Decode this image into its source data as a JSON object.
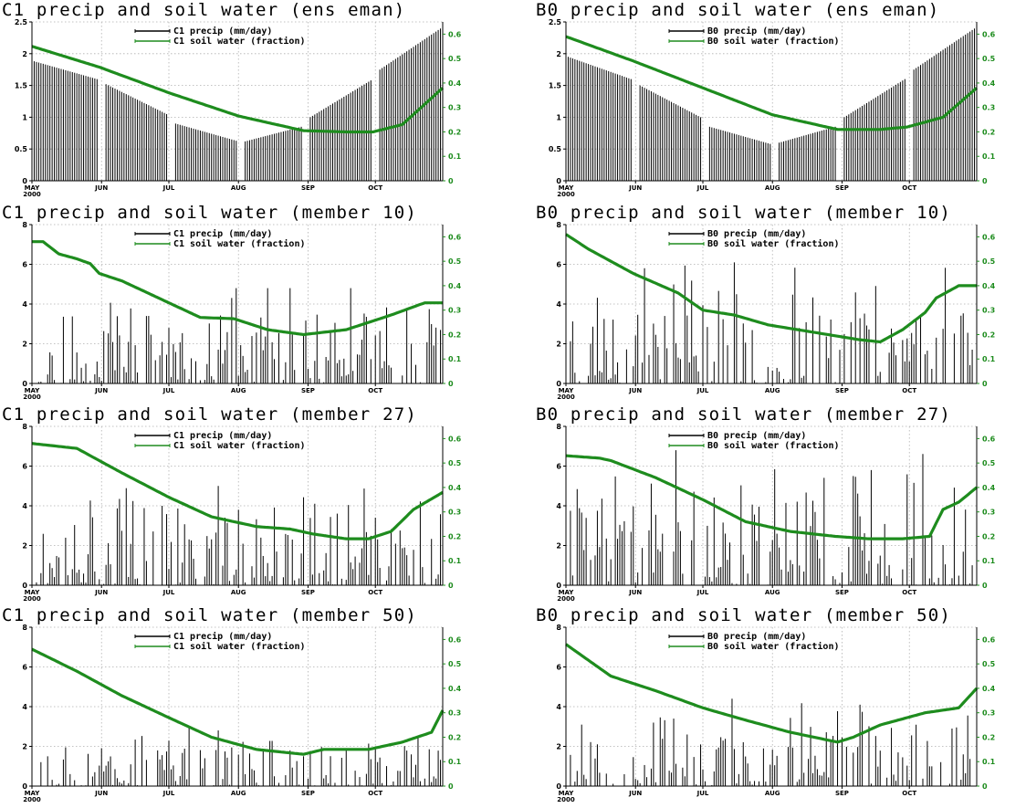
{
  "colors": {
    "precip": "#000000",
    "soil": "#1e8c1e",
    "grid": "#b0b0b0"
  },
  "chart_data": [
    {
      "type": "bar",
      "title": "C1  precip and soil water (ens eman)",
      "x_ticks": [
        "MAY",
        "JUN",
        "JUL",
        "AUG",
        "SEP",
        "OCT"
      ],
      "x_year": "2000",
      "ylim_left": [
        0,
        2.5
      ],
      "ticks_left": [
        0,
        0.5,
        1,
        1.5,
        2,
        2.5
      ],
      "ylim_right": [
        0,
        0.65
      ],
      "ticks_right": [
        0,
        0.1,
        0.2,
        0.3,
        0.4,
        0.5,
        0.6
      ],
      "grid": true,
      "legend_placement": "top-center",
      "series": [
        {
          "name": "C1 precip (mm/day)",
          "axis": "left",
          "type": "bar",
          "gaps": [
            [
              30,
              32
            ],
            [
              61,
              63
            ],
            [
              92,
              94
            ],
            [
              121,
              123
            ],
            [
              152,
              154
            ]
          ],
          "segments": [
            {
              "start": 1,
              "end": 29,
              "values": [
                1.88,
                1.6
              ]
            },
            {
              "start": 33,
              "end": 60,
              "values": [
                1.52,
                1.05
              ]
            },
            {
              "start": 64,
              "end": 91,
              "values": [
                0.9,
                0.63
              ]
            },
            {
              "start": 95,
              "end": 120,
              "values": [
                0.62,
                0.85
              ]
            },
            {
              "start": 124,
              "end": 151,
              "values": [
                1.0,
                1.58
              ]
            },
            {
              "start": 155,
              "end": 183,
              "values": [
                1.75,
                2.42
              ]
            }
          ]
        },
        {
          "name": "C1 soil water (fraction)",
          "axis": "right",
          "type": "line",
          "points": [
            [
              0,
              0.55
            ],
            [
              30,
              0.465
            ],
            [
              61,
              0.36
            ],
            [
              92,
              0.265
            ],
            [
              121,
              0.205
            ],
            [
              140,
              0.2
            ],
            [
              152,
              0.2
            ],
            [
              165,
              0.23
            ],
            [
              183,
              0.38
            ]
          ]
        }
      ]
    },
    {
      "type": "bar",
      "title": "B0  precip and soil water (ens eman)",
      "x_ticks": [
        "MAY",
        "JUN",
        "JUL",
        "AUG",
        "SEP",
        "OCT"
      ],
      "x_year": "2000",
      "ylim_left": [
        0,
        2.5
      ],
      "ticks_left": [
        0,
        0.5,
        1,
        1.5,
        2,
        2.5
      ],
      "ylim_right": [
        0,
        0.65
      ],
      "ticks_right": [
        0,
        0.1,
        0.2,
        0.3,
        0.4,
        0.5,
        0.6
      ],
      "grid": true,
      "legend_placement": "top-center",
      "series": [
        {
          "name": "B0 precip (mm/day)",
          "axis": "left",
          "type": "bar",
          "segments": [
            {
              "start": 1,
              "end": 29,
              "values": [
                1.95,
                1.6
              ]
            },
            {
              "start": 33,
              "end": 60,
              "values": [
                1.5,
                1.0
              ]
            },
            {
              "start": 64,
              "end": 91,
              "values": [
                0.85,
                0.58
              ]
            },
            {
              "start": 95,
              "end": 120,
              "values": [
                0.6,
                0.85
              ]
            },
            {
              "start": 124,
              "end": 151,
              "values": [
                1.0,
                1.6
              ]
            },
            {
              "start": 155,
              "end": 183,
              "values": [
                1.75,
                2.42
              ]
            }
          ]
        },
        {
          "name": "B0 soil water (fraction)",
          "axis": "right",
          "type": "line",
          "points": [
            [
              0,
              0.59
            ],
            [
              30,
              0.49
            ],
            [
              61,
              0.38
            ],
            [
              92,
              0.27
            ],
            [
              121,
              0.21
            ],
            [
              140,
              0.21
            ],
            [
              152,
              0.22
            ],
            [
              168,
              0.26
            ],
            [
              183,
              0.38
            ]
          ]
        }
      ]
    },
    {
      "type": "bar",
      "title": "C1  precip and soil water (member 10)",
      "x_ticks": [
        "MAY",
        "JUN",
        "JUL",
        "AUG",
        "SEP",
        "OCT"
      ],
      "x_year": "2000",
      "ylim_left": [
        0,
        8
      ],
      "ticks_left": [
        0,
        2,
        4,
        6,
        8
      ],
      "ylim_right": [
        0,
        0.65
      ],
      "ticks_right": [
        0,
        0.1,
        0.2,
        0.3,
        0.4,
        0.5,
        0.6
      ],
      "grid": true,
      "legend_placement": "top-center",
      "series": [
        {
          "name": "C1 precip (mm/day)",
          "axis": "left",
          "type": "bar",
          "seed": 11,
          "mean": 1.3,
          "peak": 4.8
        },
        {
          "name": "C1 soil water (fraction)",
          "axis": "right",
          "type": "line",
          "points": [
            [
              0,
              0.58
            ],
            [
              5,
              0.58
            ],
            [
              12,
              0.53
            ],
            [
              20,
              0.51
            ],
            [
              26,
              0.49
            ],
            [
              30,
              0.45
            ],
            [
              40,
              0.42
            ],
            [
              61,
              0.33
            ],
            [
              75,
              0.27
            ],
            [
              90,
              0.265
            ],
            [
              105,
              0.22
            ],
            [
              121,
              0.2
            ],
            [
              140,
              0.22
            ],
            [
              160,
              0.28
            ],
            [
              175,
              0.33
            ],
            [
              183,
              0.33
            ]
          ]
        }
      ]
    },
    {
      "type": "bar",
      "title": "B0  precip and soil water (member 10)",
      "x_ticks": [
        "MAY",
        "JUN",
        "JUL",
        "AUG",
        "SEP",
        "OCT"
      ],
      "x_year": "2000",
      "ylim_left": [
        0,
        8
      ],
      "ticks_left": [
        0,
        2,
        4,
        6,
        8
      ],
      "ylim_right": [
        0,
        0.65
      ],
      "ticks_right": [
        0,
        0.1,
        0.2,
        0.3,
        0.4,
        0.5,
        0.6
      ],
      "grid": true,
      "legend_placement": "top-center",
      "series": [
        {
          "name": "B0 precip (mm/day)",
          "axis": "left",
          "type": "bar",
          "seed": 23,
          "mean": 1.2,
          "peak": 6.1
        },
        {
          "name": "B0 soil water (fraction)",
          "axis": "right",
          "type": "line",
          "points": [
            [
              0,
              0.61
            ],
            [
              10,
              0.55
            ],
            [
              30,
              0.45
            ],
            [
              50,
              0.37
            ],
            [
              61,
              0.3
            ],
            [
              75,
              0.28
            ],
            [
              90,
              0.24
            ],
            [
              110,
              0.21
            ],
            [
              130,
              0.18
            ],
            [
              140,
              0.17
            ],
            [
              150,
              0.22
            ],
            [
              160,
              0.29
            ],
            [
              165,
              0.35
            ],
            [
              175,
              0.4
            ],
            [
              183,
              0.4
            ]
          ]
        }
      ]
    },
    {
      "type": "bar",
      "title": "C1  precip and soil water (member 27)",
      "x_ticks": [
        "MAY",
        "JUN",
        "JUL",
        "AUG",
        "SEP",
        "OCT"
      ],
      "x_year": "2000",
      "ylim_left": [
        0,
        8
      ],
      "ticks_left": [
        0,
        2,
        4,
        6,
        8
      ],
      "ylim_right": [
        0,
        0.65
      ],
      "ticks_right": [
        0,
        0.1,
        0.2,
        0.3,
        0.4,
        0.5,
        0.6
      ],
      "grid": true,
      "legend_placement": "top-center",
      "series": [
        {
          "name": "C1 precip (mm/day)",
          "axis": "left",
          "type": "bar",
          "seed": 37,
          "mean": 1.1,
          "peak": 5.0
        },
        {
          "name": "C1 soil water (fraction)",
          "axis": "right",
          "type": "line",
          "points": [
            [
              0,
              0.58
            ],
            [
              20,
              0.56
            ],
            [
              40,
              0.46
            ],
            [
              61,
              0.36
            ],
            [
              80,
              0.28
            ],
            [
              100,
              0.24
            ],
            [
              115,
              0.23
            ],
            [
              125,
              0.21
            ],
            [
              140,
              0.19
            ],
            [
              150,
              0.19
            ],
            [
              160,
              0.22
            ],
            [
              170,
              0.31
            ],
            [
              183,
              0.38
            ]
          ]
        }
      ]
    },
    {
      "type": "bar",
      "title": "B0  precip and soil water (member 27)",
      "x_ticks": [
        "MAY",
        "JUN",
        "JUL",
        "AUG",
        "SEP",
        "OCT"
      ],
      "x_year": "2000",
      "ylim_left": [
        0,
        8
      ],
      "ticks_left": [
        0,
        2,
        4,
        6,
        8
      ],
      "ylim_right": [
        0,
        0.65
      ],
      "ticks_right": [
        0,
        0.1,
        0.2,
        0.3,
        0.4,
        0.5,
        0.6
      ],
      "grid": true,
      "legend_placement": "top-center",
      "series": [
        {
          "name": "B0 precip (mm/day)",
          "axis": "left",
          "type": "bar",
          "seed": 41,
          "mean": 1.1,
          "peak": 6.8
        },
        {
          "name": "B0 soil water (fraction)",
          "axis": "right",
          "type": "line",
          "points": [
            [
              0,
              0.53
            ],
            [
              15,
              0.52
            ],
            [
              20,
              0.51
            ],
            [
              40,
              0.44
            ],
            [
              61,
              0.35
            ],
            [
              80,
              0.26
            ],
            [
              100,
              0.22
            ],
            [
              120,
              0.2
            ],
            [
              135,
              0.19
            ],
            [
              150,
              0.19
            ],
            [
              162,
              0.2
            ],
            [
              168,
              0.31
            ],
            [
              175,
              0.34
            ],
            [
              183,
              0.4
            ]
          ]
        }
      ]
    },
    {
      "type": "bar",
      "title": "C1  precip and soil water (member 50)",
      "x_ticks": [
        "MAY",
        "JUN",
        "JUL",
        "AUG",
        "SEP",
        "OCT"
      ],
      "x_year": "2000",
      "ylim_left": [
        0,
        8
      ],
      "ticks_left": [
        0,
        2,
        4,
        6,
        8
      ],
      "ylim_right": [
        0,
        0.65
      ],
      "ticks_right": [
        0,
        0.1,
        0.2,
        0.3,
        0.4,
        0.5,
        0.6
      ],
      "grid": true,
      "legend_placement": "top-center",
      "series": [
        {
          "name": "C1 precip (mm/day)",
          "axis": "left",
          "type": "bar",
          "seed": 53,
          "mean": 0.9,
          "peak": 3.0
        },
        {
          "name": "C1 soil water (fraction)",
          "axis": "right",
          "type": "line",
          "points": [
            [
              0,
              0.56
            ],
            [
              20,
              0.47
            ],
            [
              40,
              0.37
            ],
            [
              61,
              0.28
            ],
            [
              80,
              0.2
            ],
            [
              100,
              0.15
            ],
            [
              121,
              0.13
            ],
            [
              130,
              0.15
            ],
            [
              150,
              0.15
            ],
            [
              165,
              0.18
            ],
            [
              178,
              0.22
            ],
            [
              183,
              0.31
            ]
          ]
        }
      ]
    },
    {
      "type": "bar",
      "title": "B0  precip and soil water (member 50)",
      "x_ticks": [
        "MAY",
        "JUN",
        "JUL",
        "AUG",
        "SEP",
        "OCT"
      ],
      "x_year": "2000",
      "ylim_left": [
        0,
        8
      ],
      "ticks_left": [
        0,
        2,
        4,
        6,
        8
      ],
      "ylim_right": [
        0,
        0.65
      ],
      "ticks_right": [
        0,
        0.1,
        0.2,
        0.3,
        0.4,
        0.5,
        0.6
      ],
      "grid": true,
      "legend_placement": "top-center",
      "series": [
        {
          "name": "B0 precip (mm/day)",
          "axis": "left",
          "type": "bar",
          "seed": 67,
          "mean": 1.3,
          "peak": 4.4
        },
        {
          "name": "B0 soil water (fraction)",
          "axis": "right",
          "type": "line",
          "points": [
            [
              0,
              0.58
            ],
            [
              20,
              0.45
            ],
            [
              40,
              0.39
            ],
            [
              61,
              0.32
            ],
            [
              80,
              0.27
            ],
            [
              100,
              0.22
            ],
            [
              121,
              0.18
            ],
            [
              128,
              0.2
            ],
            [
              140,
              0.25
            ],
            [
              160,
              0.3
            ],
            [
              175,
              0.32
            ],
            [
              183,
              0.4
            ]
          ]
        }
      ]
    }
  ]
}
